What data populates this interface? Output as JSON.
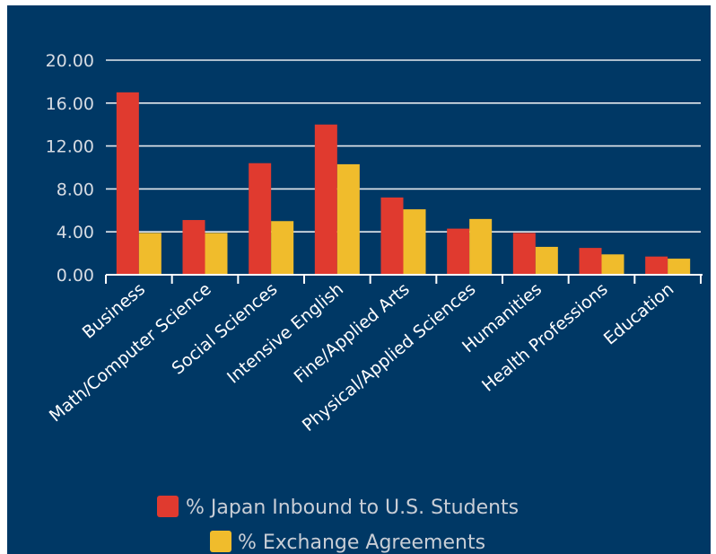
{
  "colors": {
    "background": "#003865",
    "japan_series": "#e03a2f",
    "exchange_series": "#f0bc2c",
    "gridline": "#e6e9ee",
    "axis": "#ffffff",
    "tick_text": "#d7dce3",
    "category_text": "#ffffff",
    "legend_text": "#c9ced6"
  },
  "chart_data": {
    "type": "bar",
    "title": "",
    "xlabel": "",
    "ylabel": "",
    "ylim": [
      0,
      20
    ],
    "yticks": [
      "0.00",
      "4.00",
      "8.00",
      "12.00",
      "16.00",
      "20.00"
    ],
    "grid": true,
    "legend_position": "bottom-center",
    "categories": [
      "Business",
      "Math/Computer Science",
      "Social Sciences",
      "Intensive English",
      "Fine/Applied Arts",
      "Physical/Applied Sciences",
      "Humanities",
      "Health Professions",
      "Education"
    ],
    "series": [
      {
        "name": "% Japan Inbound to U.S. Students",
        "values": [
          17.0,
          5.1,
          10.4,
          14.0,
          7.2,
          4.3,
          3.9,
          2.5,
          1.7
        ]
      },
      {
        "name": "% Exchange Agreements",
        "values": [
          3.9,
          3.9,
          5.0,
          10.3,
          6.1,
          5.2,
          2.6,
          1.9,
          1.5
        ]
      }
    ]
  }
}
